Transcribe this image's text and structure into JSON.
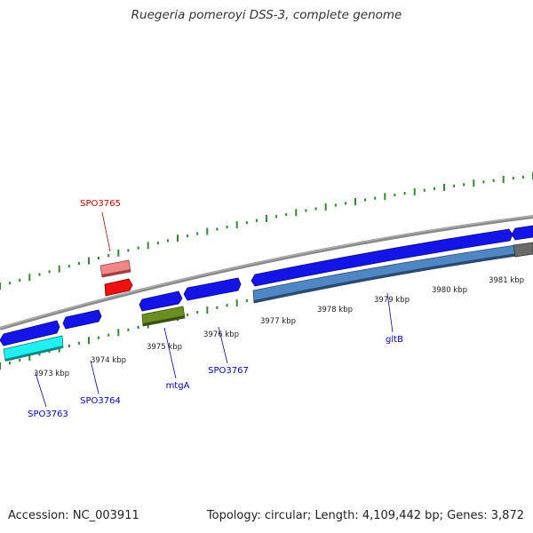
{
  "title": "Ruegeria pomeroyi DSS-3, complete genome",
  "footer": {
    "accession": "Accession: NC_003911",
    "summary": "Topology: circular; Length: 4,109,442 bp; Genes: 3,872"
  },
  "colors": {
    "backbone": "#7a7a7a",
    "forward_cds": "#1010e8",
    "reverse_cds": "#4f86c4",
    "highlight_red": "#ee1111",
    "highlight_pink": "#ee8888",
    "cyan": "#22f0f0",
    "olive": "#6b8e23",
    "gc_ticks": "#2e8b2e",
    "gene_label_blue": "#0000cc",
    "gene_label_red": "#cc0000"
  },
  "kbp_labels": [
    "3973 kbp",
    "3974 kbp",
    "3975 kbp",
    "3976 kbp",
    "3977 kbp",
    "3978 kbp",
    "3979 kbp",
    "3980 kbp",
    "3981 kbp"
  ],
  "gene_labels": [
    {
      "name": "SPO3765",
      "color": "red"
    },
    {
      "name": "SPO3763",
      "color": "blue"
    },
    {
      "name": "SPO3764",
      "color": "blue"
    },
    {
      "name": "mtgA",
      "color": "blue"
    },
    {
      "name": "SPO3767",
      "color": "blue"
    },
    {
      "name": "gltB",
      "color": "blue"
    }
  ]
}
